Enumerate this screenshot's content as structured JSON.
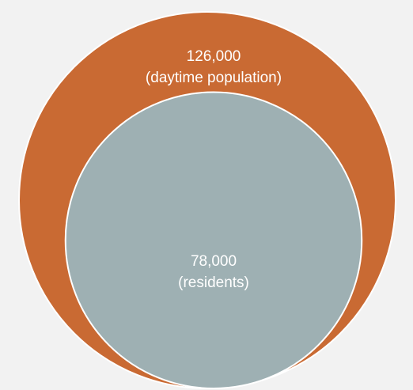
{
  "chart_data": {
    "type": "nested-bubble",
    "title": "",
    "bubbles": [
      {
        "value": 126000,
        "value_label": "126,000",
        "label": "(daytime population)",
        "color": "#c96a33"
      },
      {
        "value": 78000,
        "value_label": "78,000",
        "label": "(residents)",
        "color": "#9eb0b3"
      }
    ],
    "colors": {
      "background": "#f2f2f2",
      "outline": "#ffffff",
      "text": "#ffffff"
    }
  }
}
